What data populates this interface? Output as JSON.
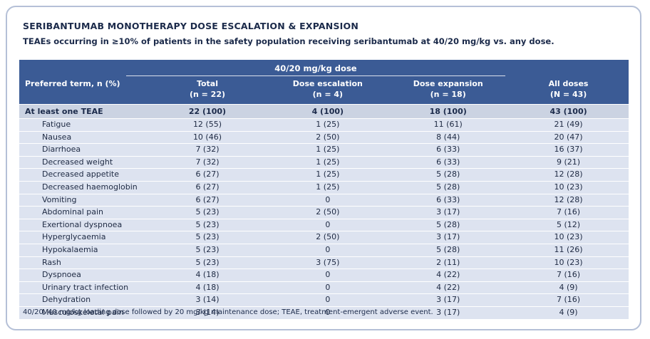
{
  "card": {
    "title": "SERIBANTUMAB MONOTHERAPY DOSE ESCALATION & EXPANSION",
    "subtitle": "TEAEs occurring in ≥10% of patients in the safety population receiving seribantumab at 40/20 mg/kg vs. any dose.",
    "footnote": "40/20, 40 mg/kg loading dose followed by 20 mg/kg maintenance dose; TEAE, treatment-emergent adverse event."
  },
  "table": {
    "group_header": "40/20 mg/kg dose",
    "columns": [
      {
        "label": "Preferred term, n (%)",
        "sub": ""
      },
      {
        "label": "Total",
        "sub": "(n = 22)"
      },
      {
        "label": "Dose escalation",
        "sub": "(n = 4)"
      },
      {
        "label": "Dose expansion",
        "sub": "(n = 18)"
      },
      {
        "label": "All doses",
        "sub": "(N = 43)"
      }
    ],
    "rows": [
      {
        "term": "At least one TEAE",
        "emphasis": true,
        "values": [
          "22 (100)",
          "4 (100)",
          "18 (100)",
          "43 (100)"
        ]
      },
      {
        "term": "Fatigue",
        "emphasis": false,
        "values": [
          "12 (55)",
          "1 (25)",
          "11 (61)",
          "21 (49)"
        ]
      },
      {
        "term": "Nausea",
        "emphasis": false,
        "values": [
          "10 (46)",
          "2 (50)",
          "8 (44)",
          "20 (47)"
        ]
      },
      {
        "term": "Diarrhoea",
        "emphasis": false,
        "values": [
          "7 (32)",
          "1 (25)",
          "6 (33)",
          "16 (37)"
        ]
      },
      {
        "term": "Decreased weight",
        "emphasis": false,
        "values": [
          "7 (32)",
          "1 (25)",
          "6 (33)",
          "9 (21)"
        ]
      },
      {
        "term": "Decreased appetite",
        "emphasis": false,
        "values": [
          "6 (27)",
          "1 (25)",
          "5 (28)",
          "12 (28)"
        ]
      },
      {
        "term": "Decreased haemoglobin",
        "emphasis": false,
        "values": [
          "6 (27)",
          "1 (25)",
          "5 (28)",
          "10 (23)"
        ]
      },
      {
        "term": "Vomiting",
        "emphasis": false,
        "values": [
          "6 (27)",
          "0",
          "6 (33)",
          "12 (28)"
        ]
      },
      {
        "term": "Abdominal pain",
        "emphasis": false,
        "values": [
          "5 (23)",
          "2 (50)",
          "3 (17)",
          "7 (16)"
        ]
      },
      {
        "term": "Exertional dyspnoea",
        "emphasis": false,
        "values": [
          "5 (23)",
          "0",
          "5 (28)",
          "5 (12)"
        ]
      },
      {
        "term": "Hyperglycaemia",
        "emphasis": false,
        "values": [
          "5 (23)",
          "2 (50)",
          "3 (17)",
          "10 (23)"
        ]
      },
      {
        "term": "Hypokalaemia",
        "emphasis": false,
        "values": [
          "5 (23)",
          "0",
          "5 (28)",
          "11 (26)"
        ]
      },
      {
        "term": "Rash",
        "emphasis": false,
        "values": [
          "5 (23)",
          "3 (75)",
          "2 (11)",
          "10 (23)"
        ]
      },
      {
        "term": "Dyspnoea",
        "emphasis": false,
        "values": [
          "4 (18)",
          "0",
          "4 (22)",
          "7 (16)"
        ]
      },
      {
        "term": "Urinary tract infection",
        "emphasis": false,
        "values": [
          "4 (18)",
          "0",
          "4 (22)",
          "4 (9)"
        ]
      },
      {
        "term": "Dehydration",
        "emphasis": false,
        "values": [
          "3 (14)",
          "0",
          "3 (17)",
          "7 (16)"
        ]
      },
      {
        "term": "Musculoskeletal pain",
        "emphasis": false,
        "values": [
          "3 (14)",
          "0",
          "3 (17)",
          "4 (9)"
        ]
      }
    ]
  },
  "chart_data": {
    "type": "table",
    "title": "SERIBANTUMAB MONOTHERAPY DOSE ESCALATION & EXPANSION",
    "columns": [
      "Preferred term, n (%)",
      "Total (n = 22)",
      "Dose escalation (n = 4)",
      "Dose expansion (n = 18)",
      "All doses (N = 43)"
    ],
    "group_header_span": "40/20 mg/kg dose (spans Total, Dose escalation, Dose expansion)"
  },
  "colors": {
    "header_bg": "#3b5b95",
    "header_text": "#ffffff",
    "row_bg": "#dde3f0",
    "emphasis_row_bg": "#cbd3e2",
    "ink": "#1b2a4a",
    "card_border": "#b5c0d7",
    "row_separator": "#ffffff",
    "group_underline": "#d9dfec"
  }
}
